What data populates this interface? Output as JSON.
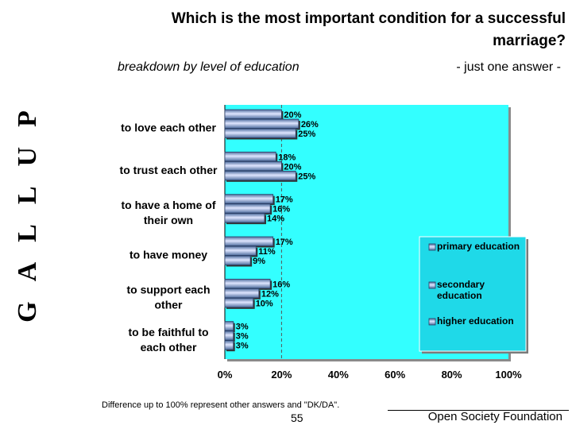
{
  "header": {
    "title": "Which is the most important condition for a successful marriage?",
    "subtitle": "breakdown by level of education",
    "answer_note": "- just one answer -",
    "brand": "GALLUP"
  },
  "chart_data": {
    "type": "bar",
    "orientation": "horizontal",
    "categories": [
      "to love each other",
      "to trust each other",
      "to have a home of their own",
      "to have money",
      "to support each other",
      "to be faithful to each other"
    ],
    "category_lines": [
      [
        "to love each other"
      ],
      [
        "to trust each other"
      ],
      [
        "to have a home of",
        "their own"
      ],
      [
        "to have money"
      ],
      [
        "to support each",
        "other"
      ],
      [
        "to be faithful to",
        "each other"
      ]
    ],
    "series": [
      {
        "name": "primary education",
        "values": [
          20,
          18,
          17,
          17,
          16,
          3
        ]
      },
      {
        "name": "secondary education",
        "values": [
          26,
          20,
          16,
          11,
          12,
          3
        ]
      },
      {
        "name": "higher education",
        "values": [
          25,
          25,
          14,
          9,
          10,
          3
        ]
      }
    ],
    "legend_labels": [
      [
        "primary education"
      ],
      [
        "secondary",
        "education"
      ],
      [
        "higher education"
      ]
    ],
    "xlim": [
      0,
      100
    ],
    "xticks": [
      "0%",
      "20%",
      "40%",
      "60%",
      "80%",
      "100%"
    ],
    "reference_line": 20,
    "legend_position": "right",
    "colors": {
      "plot_bg": "#33ffff",
      "legend_bg": "#1fd9e8",
      "bar_dark": "#4e6d9e",
      "bar_light": "#dfe6ff",
      "bar_mid": "#99b1e8"
    }
  },
  "footer": {
    "note": "Difference up to 100% represent other answers and \"DK/DA\".",
    "page": "55",
    "organization": "Open Society Foundation"
  }
}
